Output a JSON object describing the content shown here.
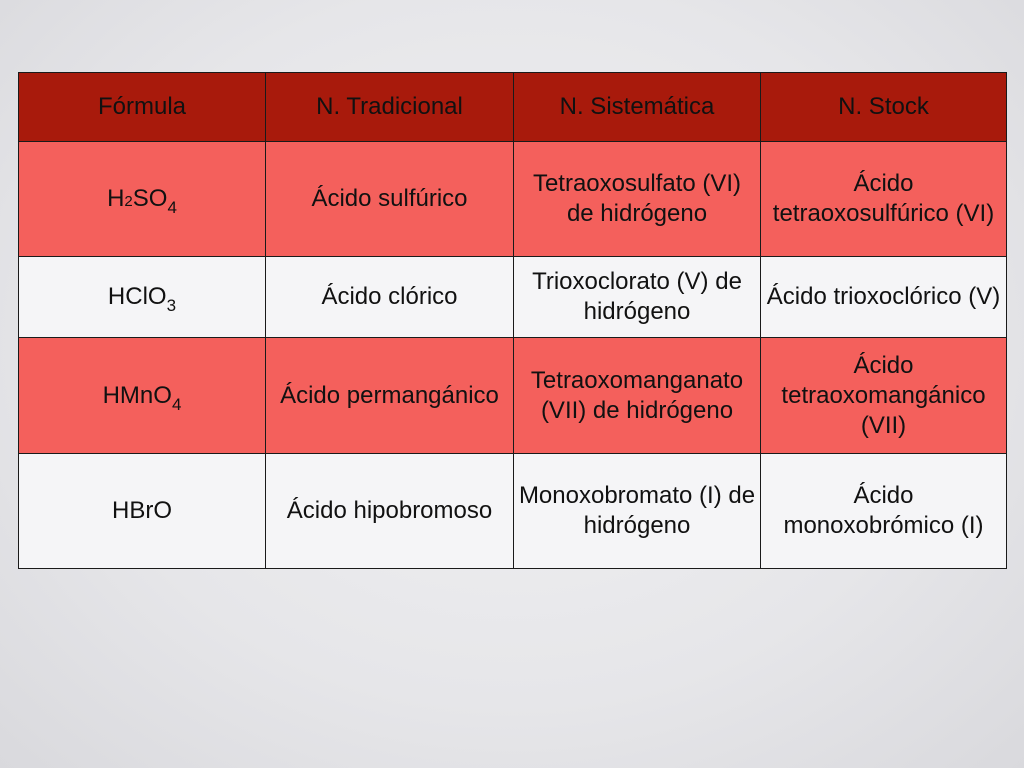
{
  "table": {
    "headers": [
      "Fórmula",
      "N. Tradicional",
      "N. Sistemática",
      "N. Stock"
    ],
    "rows": [
      {
        "formula": {
          "base": "H",
          "sub1": "2",
          "mid": "SO",
          "sub2": "4"
        },
        "tradicional": "Ácido sulfúrico",
        "sistematica": "Tetraoxosulfato (VI) de hidrógeno",
        "stock": "Ácido tetraoxosulfúrico (VI)"
      },
      {
        "formula": {
          "base": "HClO",
          "sub": "3"
        },
        "tradicional": "Ácido clórico",
        "sistematica": "Trioxoclorato (V) de hidrógeno",
        "stock": "Ácido trioxoclórico (V)"
      },
      {
        "formula": {
          "base": "HMnO",
          "sub": "4"
        },
        "tradicional": "Ácido permangánico",
        "sistematica": "Tetraoxomanganato (VII) de hidrógeno",
        "stock": "Ácido tetraoxomangánico (VII)"
      },
      {
        "formula": {
          "base": "HBrO"
        },
        "tradicional": "Ácido hipobromoso",
        "sistematica": "Monoxobromato (I) de hidrógeno",
        "stock": "Ácido monoxobrómico (I)"
      }
    ]
  },
  "colors": {
    "header_bg": "#a81a0c",
    "row_red": "#f4605c",
    "row_white": "#f5f5f7",
    "slide_bg": "#e8e8eb"
  }
}
